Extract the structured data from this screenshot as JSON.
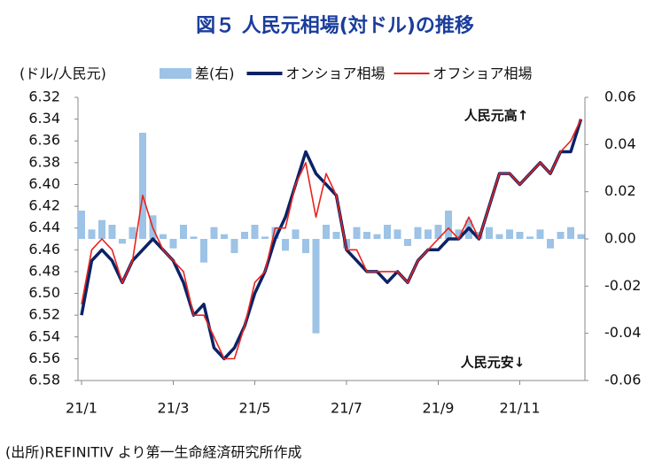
{
  "chart_data": {
    "type": "line",
    "title": "図５ 人民元相場(対ドル)の推移",
    "y_label": "(ドル/人民元)",
    "source": "(出所)REFINITIV より第一生命経済研究所作成",
    "annotations": [
      "人民元高↑",
      "人民元安↓"
    ],
    "categories": [
      "21/1",
      null,
      null,
      null,
      null,
      null,
      null,
      null,
      null,
      "21/3",
      null,
      null,
      null,
      null,
      null,
      null,
      null,
      "21/5",
      null,
      null,
      null,
      null,
      null,
      null,
      null,
      null,
      "21/7",
      null,
      null,
      null,
      null,
      null,
      null,
      null,
      null,
      "21/9",
      null,
      null,
      null,
      null,
      null,
      null,
      null,
      "21/11",
      null,
      null,
      null,
      null,
      null,
      null
    ],
    "ylim": [
      6.58,
      6.32
    ],
    "yticks": [
      6.32,
      6.34,
      6.36,
      6.38,
      {
        "value": 6.4,
        "label": "6.40"
      },
      6.42,
      6.44,
      6.46,
      6.48,
      {
        "value": 6.5,
        "label": "6.50"
      },
      6.52,
      6.54,
      6.56,
      6.58
    ],
    "y2lim": [
      -0.06,
      0.06
    ],
    "y2ticks": [
      {
        "value": -0.06,
        "label": "-0.06"
      },
      {
        "value": -0.04,
        "label": "-0.04"
      },
      {
        "value": -0.02,
        "label": "-0.02"
      },
      {
        "value": 0,
        "label": "0.00"
      },
      {
        "value": 0.02,
        "label": "0.02"
      },
      {
        "value": 0.04,
        "label": "0.04"
      },
      {
        "value": 0.06,
        "label": "0.06"
      }
    ],
    "y2_negative_color": "#e8231e",
    "series": [
      {
        "name": "差(右)",
        "type": "bar",
        "axis": "y2",
        "color": "#9dc3e6",
        "values": [
          0.012,
          0.004,
          0.008,
          0.006,
          -0.002,
          0.005,
          0.045,
          0.01,
          0.002,
          -0.004,
          0.006,
          0.001,
          -0.01,
          0.005,
          0.002,
          -0.006,
          0.003,
          0.006,
          0.001,
          0.005,
          -0.005,
          0.004,
          -0.006,
          -0.04,
          0.006,
          0.003,
          -0.004,
          0.005,
          0.003,
          0.002,
          0.006,
          0.004,
          -0.003,
          0.005,
          0.004,
          0.006,
          0.012,
          0.004,
          0.008,
          0.003,
          0.005,
          0.002,
          0.004,
          0.003,
          0.001,
          0.004,
          -0.004,
          0.003,
          0.005,
          0.002
        ]
      },
      {
        "name": "オンショア相場",
        "color": "#0b2266",
        "values": [
          6.52,
          6.47,
          6.46,
          6.47,
          6.49,
          6.47,
          6.46,
          6.45,
          6.46,
          6.47,
          6.49,
          6.52,
          6.51,
          6.55,
          6.56,
          6.55,
          6.53,
          6.5,
          6.48,
          6.45,
          6.43,
          6.4,
          6.37,
          6.39,
          6.4,
          6.41,
          6.46,
          6.47,
          6.48,
          6.48,
          6.49,
          6.48,
          6.49,
          6.47,
          6.46,
          6.46,
          6.45,
          6.45,
          6.44,
          6.45,
          6.42,
          6.39,
          6.39,
          6.4,
          6.39,
          6.38,
          6.39,
          6.37,
          6.37,
          6.34
        ]
      },
      {
        "name": "オフショア相場",
        "color": "#e8231e",
        "values": [
          6.51,
          6.46,
          6.45,
          6.46,
          6.49,
          6.47,
          6.41,
          6.44,
          6.46,
          6.47,
          6.48,
          6.52,
          6.52,
          6.54,
          6.56,
          6.56,
          6.53,
          6.49,
          6.48,
          6.44,
          6.44,
          6.4,
          6.38,
          6.43,
          6.39,
          6.41,
          6.46,
          6.46,
          6.48,
          6.48,
          6.48,
          6.48,
          6.49,
          6.47,
          6.46,
          6.45,
          6.44,
          6.45,
          6.43,
          6.45,
          6.42,
          6.39,
          6.39,
          6.4,
          6.39,
          6.38,
          6.39,
          6.37,
          6.36,
          6.34
        ]
      }
    ]
  }
}
